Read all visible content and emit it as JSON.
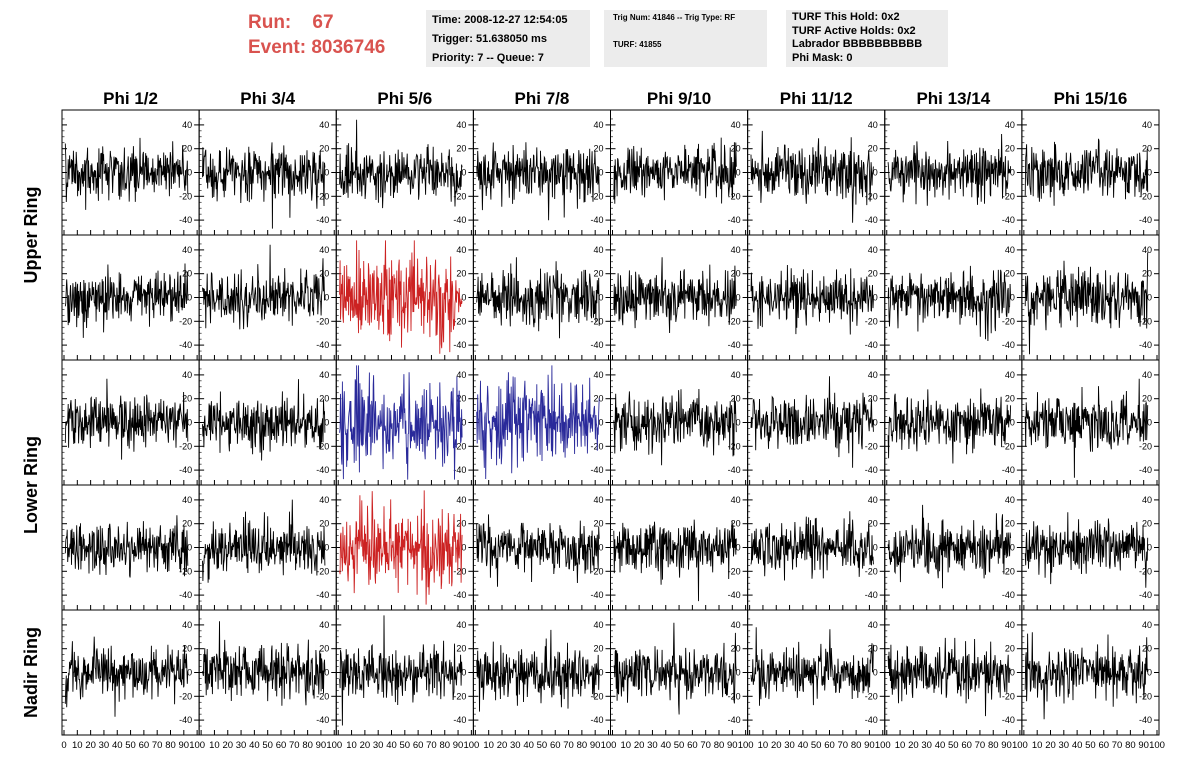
{
  "header": {
    "run_label": "Run:",
    "run_value": "67",
    "event_label": "Event:",
    "event_value": "8036746",
    "time": "Time: 2008-12-27 12:54:05",
    "trigger": "Trigger: 51.638050 ms",
    "priority": "Priority: 7 -- Queue: 7",
    "trig_num": "Trig Num: 41846 -- Trig Type: RF",
    "turf": "TURF: 41855",
    "turf_hold": "TURF This Hold: 0x2",
    "turf_active": "TURF Active Holds: 0x2",
    "labrador": "Labrador BBBBBBBBBB",
    "phi_mask": "Phi Mask: 0",
    "colors": {
      "run_text": "#d9534f",
      "info_bg": "#ececec"
    }
  },
  "chart_data": {
    "type": "line",
    "columns": [
      "Phi 1/2",
      "Phi 3/4",
      "Phi 5/6",
      "Phi 7/8",
      "Phi 9/10",
      "Phi 11/12",
      "Phi 13/14",
      "Phi 15/16"
    ],
    "ring_labels": [
      {
        "text": "Upper Ring",
        "rows": [
          0,
          1
        ]
      },
      {
        "text": "Lower Ring",
        "rows": [
          2,
          3
        ]
      },
      {
        "text": "Nadir Ring",
        "rows": [
          4,
          4
        ]
      }
    ],
    "rows": 5,
    "xlim": [
      0,
      100
    ],
    "ylim": [
      -50,
      50
    ],
    "x_ticks": [
      "0",
      "10",
      "20",
      "30",
      "40",
      "50",
      "60",
      "70",
      "80",
      "90",
      "100"
    ],
    "y_ticks": [
      "40",
      "20",
      "0",
      "-20",
      "-40"
    ],
    "y_tick_values": [
      40,
      20,
      0,
      -20,
      -40
    ],
    "default_color": "#000000",
    "highlights": [
      {
        "row": 1,
        "col": 2,
        "color": "#cc2222"
      },
      {
        "row": 2,
        "col": 2,
        "color": "#2a2a9a"
      },
      {
        "row": 2,
        "col": 3,
        "color": "#2a2a9a"
      },
      {
        "row": 3,
        "col": 2,
        "color": "#cc2222"
      }
    ],
    "waveform": {
      "samples": 260,
      "x_start": 1,
      "x_end": 93,
      "noise_amplitude": 20,
      "highlight_amplitude": 30
    }
  }
}
